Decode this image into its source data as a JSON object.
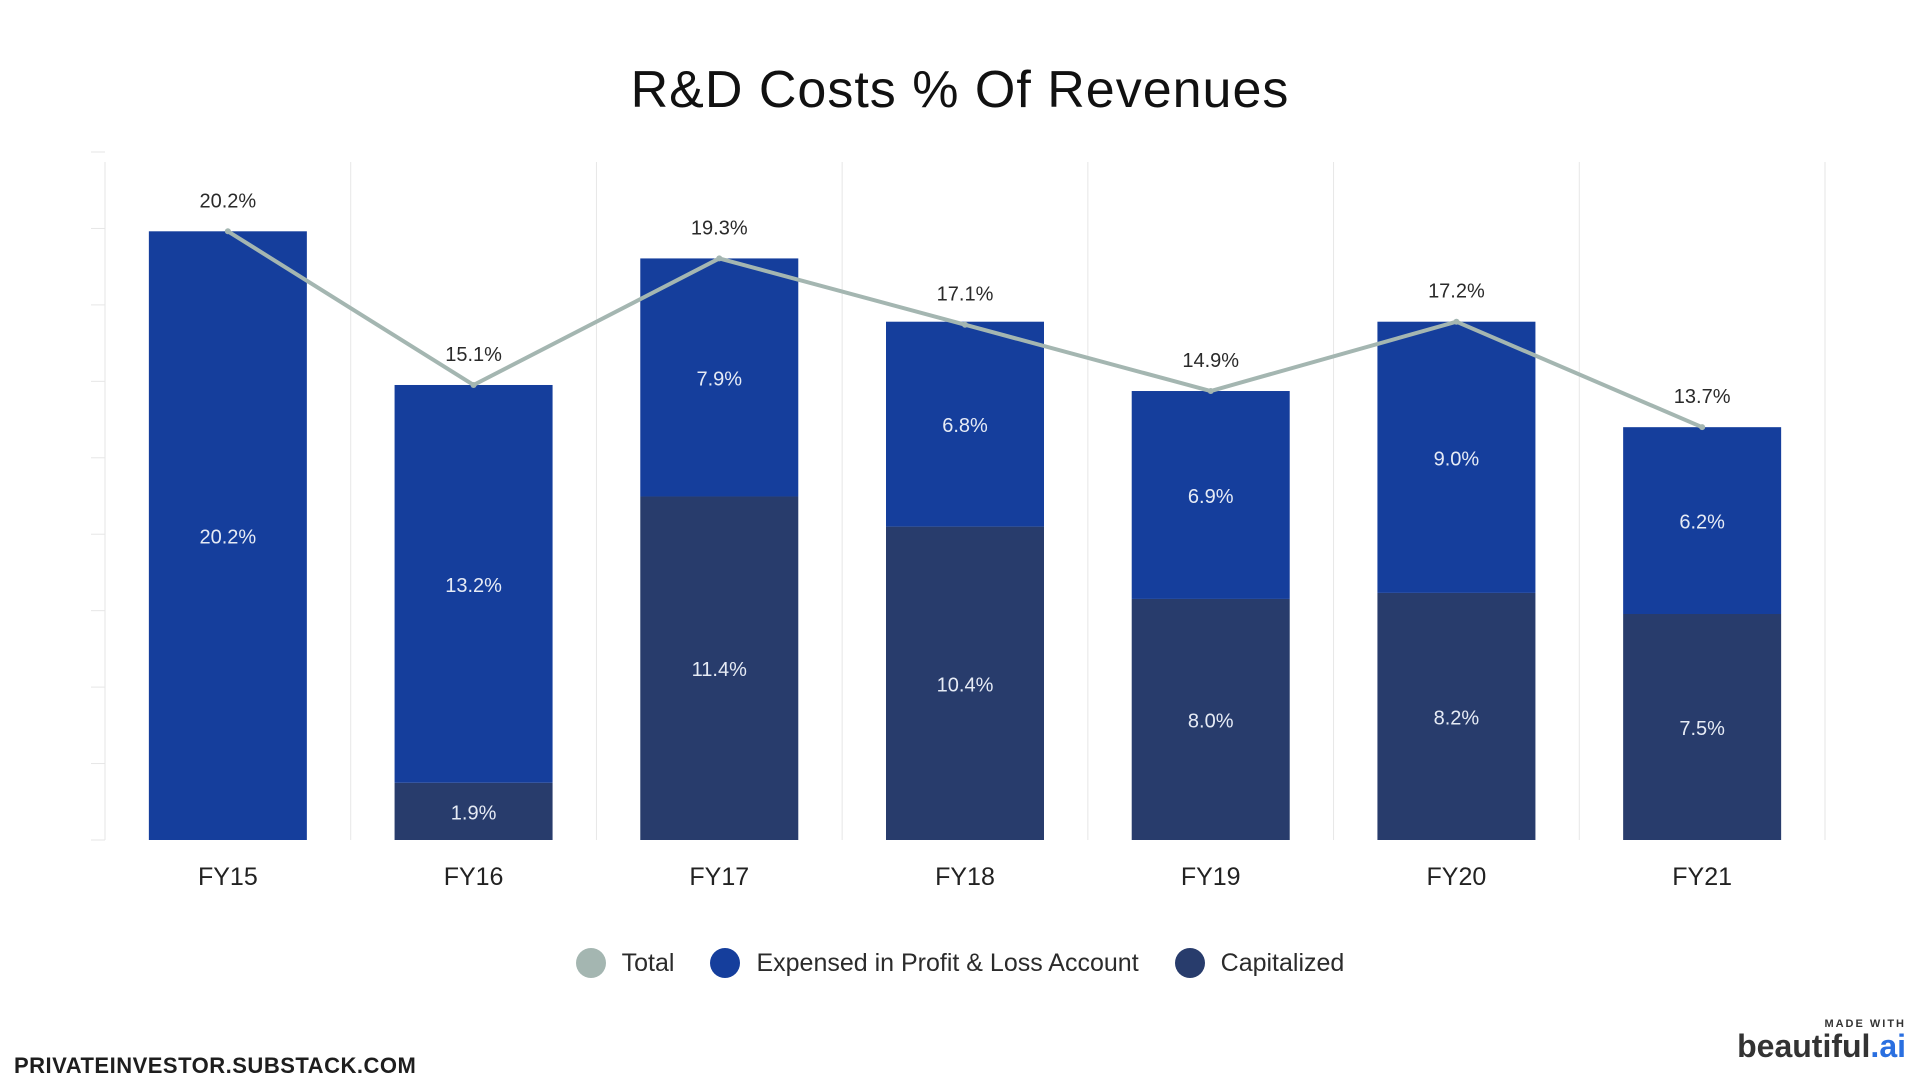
{
  "title": "R&D Costs % Of Revenues",
  "chart_data": {
    "type": "bar",
    "stacked": true,
    "title": "R&D Costs % Of Revenues",
    "categories": [
      "FY15",
      "FY16",
      "FY17",
      "FY18",
      "FY19",
      "FY20",
      "FY21"
    ],
    "series": [
      {
        "name": "Capitalized",
        "values": [
          null,
          1.9,
          11.4,
          10.4,
          8.0,
          8.2,
          7.5
        ],
        "labels": [
          "",
          "1.9%",
          "11.4%",
          "10.4%",
          "8.0%",
          "8.2%",
          "7.5%"
        ],
        "color": "#283c6c"
      },
      {
        "name": "Expensed in Profit & Loss Account",
        "values": [
          20.2,
          13.2,
          7.9,
          6.8,
          6.9,
          9.0,
          6.2
        ],
        "labels": [
          "20.2%",
          "13.2%",
          "7.9%",
          "6.8%",
          "6.9%",
          "9.0%",
          "6.2%"
        ],
        "color": "#153e9c"
      },
      {
        "name": "Total",
        "type": "line",
        "values": [
          20.2,
          15.1,
          19.3,
          17.1,
          14.9,
          17.2,
          13.7
        ],
        "labels": [
          "20.2%",
          "15.1%",
          "19.3%",
          "17.1%",
          "14.9%",
          "17.2%",
          "13.7%"
        ],
        "color": "#a4b6b1"
      }
    ],
    "ylim": [
      0,
      22.5
    ],
    "grid": true,
    "legend": "bottom",
    "legend_order": [
      "Total",
      "Expensed in Profit & Loss Account",
      "Capitalized"
    ]
  },
  "footer": {
    "source": "PRIVATEINVESTOR.SUBSTACK.COM",
    "made_with": "MADE WITH",
    "brand_main": "beautiful",
    "brand_suffix": ".ai"
  }
}
